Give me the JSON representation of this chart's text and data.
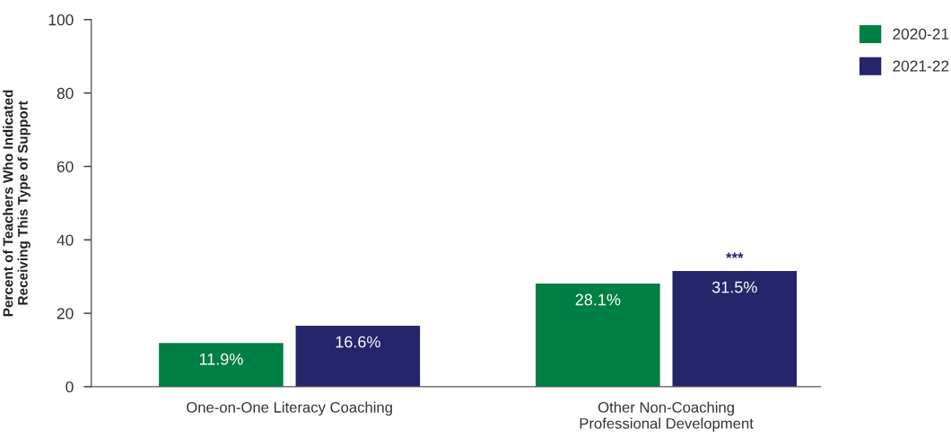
{
  "chart_data": {
    "type": "bar",
    "ylabel": "Percent of Teachers Who Indicated\nReceiving This Type of Support",
    "categories": [
      "One-on-One Literacy Coaching",
      "Other Non-Coaching\nProfessional Development"
    ],
    "series": [
      {
        "name": "2020-21",
        "color": "#007f45",
        "values": [
          11.9,
          28.1
        ],
        "value_labels": [
          "11.9%",
          "28.1%"
        ]
      },
      {
        "name": "2021-22",
        "color": "#25256b",
        "values": [
          16.6,
          31.5
        ],
        "value_labels": [
          "16.6%",
          "31.5%"
        ]
      }
    ],
    "annotations": [
      "***"
    ],
    "ylim": [
      0,
      100
    ],
    "yticks": [
      0,
      20,
      40,
      60,
      80,
      100
    ],
    "grid": false,
    "legend": "top right"
  }
}
